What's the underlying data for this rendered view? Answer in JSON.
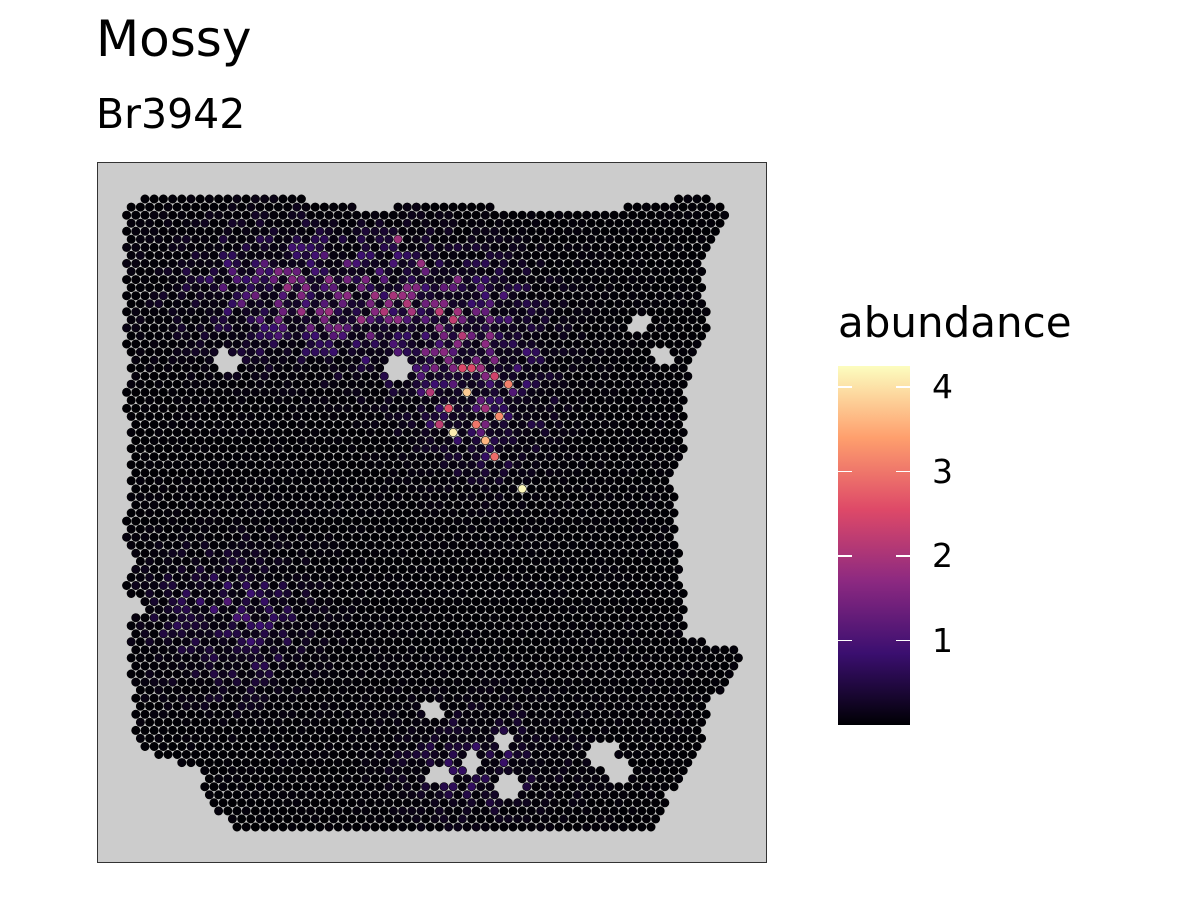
{
  "chart_data": {
    "type": "scatter",
    "title": "Mossy",
    "subtitle": "Br3942",
    "legend": {
      "title": "abundance",
      "position": "right",
      "range": [
        0,
        4.25
      ],
      "ticks": [
        1,
        2,
        3,
        4
      ],
      "tick_labels": [
        "1",
        "2",
        "3",
        "4"
      ],
      "colormap": "magma",
      "colors": [
        "#000004",
        "#3b0f70",
        "#8c2981",
        "#de4968",
        "#fe9f6d",
        "#fcfdbf"
      ]
    },
    "panel_background": "#cccccc",
    "grid": false,
    "axes_visible": false,
    "hotspots": [
      {
        "x": 26,
        "y": 39,
        "value": 4.2
      },
      {
        "x": 20,
        "y": 27,
        "value": 3.8
      },
      {
        "x": 24,
        "y": 30,
        "value": 3.2
      },
      {
        "x": 25,
        "y": 26,
        "value": 3.1
      },
      {
        "x": 17,
        "y": 34,
        "value": 3.5
      },
      {
        "x": 19,
        "y": 32,
        "value": 4.1
      },
      {
        "x": 21,
        "y": 31,
        "value": 3.0
      },
      {
        "x": 22,
        "y": 33,
        "value": 3.6
      },
      {
        "x": 23,
        "y": 35,
        "value": 2.9
      },
      {
        "x": 18,
        "y": 29,
        "value": 2.6
      },
      {
        "x": 20,
        "y": 24,
        "value": 2.5
      },
      {
        "x": 23,
        "y": 25,
        "value": 2.4
      },
      {
        "x": 17,
        "y": 31,
        "value": 2.2
      },
      {
        "x": 16,
        "y": 27,
        "value": 2.1
      },
      {
        "x": 17,
        "y": 16,
        "value": 2.0
      },
      {
        "x": 13,
        "y": 8,
        "value": 1.9
      },
      {
        "x": 15,
        "y": 11,
        "value": 1.8
      },
      {
        "x": 14,
        "y": 14,
        "value": 1.6
      },
      {
        "x": 22,
        "y": 21,
        "value": 1.7
      },
      {
        "x": 19,
        "y": 13,
        "value": 1.6
      }
    ]
  }
}
